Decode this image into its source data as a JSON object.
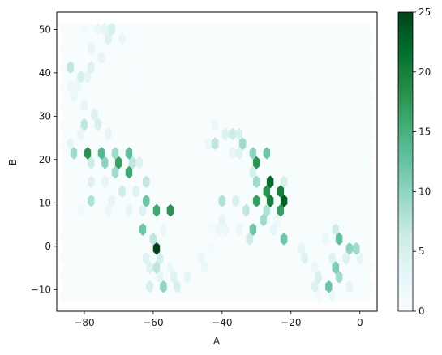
{
  "chart_data": {
    "type": "heatmap",
    "subtype": "hexbin",
    "title": "",
    "xlabel": "A",
    "ylabel": "B",
    "xlim": [
      -88,
      5
    ],
    "ylim": [
      -15,
      54
    ],
    "xticks": [
      -80,
      -60,
      -40,
      -20,
      0
    ],
    "yticks": [
      -10,
      0,
      10,
      20,
      30,
      40,
      50
    ],
    "xtick_labels": [
      "−80",
      "−60",
      "−40",
      "−20",
      "0"
    ],
    "ytick_labels": [
      "−10",
      "0",
      "10",
      "20",
      "30",
      "40",
      "50"
    ],
    "hex_grid": {
      "x_start": -86,
      "x_step": 2.0,
      "y_start": -11.5,
      "y_step": 2.2,
      "cols": 45,
      "rows": 29
    },
    "colorbar": {
      "min": 0,
      "max": 25,
      "ticks": [
        0,
        5,
        10,
        15,
        20,
        25
      ],
      "tick_labels": [
        "0",
        "5",
        "10",
        "15",
        "20",
        "25"
      ],
      "colormap": "BuGn",
      "stops": [
        "#f7fcfd",
        "#e5f5f9",
        "#ccece6",
        "#99d8c9",
        "#66c2a4",
        "#41ae76",
        "#238b45",
        "#006d2c",
        "#00441b"
      ]
    },
    "bins": [
      {
        "x": -60,
        "y": 0,
        "count": 25
      },
      {
        "x": -80,
        "y": 21.5,
        "count": 18
      },
      {
        "x": -76,
        "y": 21.5,
        "count": 14
      },
      {
        "x": -72,
        "y": 21.5,
        "count": 9
      },
      {
        "x": -68,
        "y": 21.5,
        "count": 13
      },
      {
        "x": -84,
        "y": 21.5,
        "count": 9
      },
      {
        "x": -70,
        "y": 19.5,
        "count": 17
      },
      {
        "x": -68,
        "y": 17.5,
        "count": 16
      },
      {
        "x": -66,
        "y": 19.5,
        "count": 7
      },
      {
        "x": -78,
        "y": 19.5,
        "count": 6
      },
      {
        "x": -74,
        "y": 19.5,
        "count": 10
      },
      {
        "x": -72,
        "y": 17.5,
        "count": 9
      },
      {
        "x": -64,
        "y": 19.5,
        "count": 4
      },
      {
        "x": -62,
        "y": 15.5,
        "count": 7
      },
      {
        "x": -78,
        "y": 15.5,
        "count": 4
      },
      {
        "x": -74,
        "y": 15.5,
        "count": 3
      },
      {
        "x": -70,
        "y": 13.5,
        "count": 6
      },
      {
        "x": -66,
        "y": 13.5,
        "count": 4
      },
      {
        "x": -72,
        "y": 11.5,
        "count": 3
      },
      {
        "x": -78,
        "y": 10,
        "count": 8
      },
      {
        "x": -62,
        "y": 10,
        "count": 12
      },
      {
        "x": -60,
        "y": 8,
        "count": 16
      },
      {
        "x": -56,
        "y": 8,
        "count": 18
      },
      {
        "x": -64,
        "y": 8,
        "count": 4
      },
      {
        "x": -68,
        "y": 8,
        "count": 3
      },
      {
        "x": -74,
        "y": 8,
        "count": 2
      },
      {
        "x": -82,
        "y": 8,
        "count": 1
      },
      {
        "x": -64,
        "y": 4,
        "count": 12
      },
      {
        "x": -58,
        "y": 4,
        "count": 2
      },
      {
        "x": -60,
        "y": 2,
        "count": 7
      },
      {
        "x": -58,
        "y": -2,
        "count": 5
      },
      {
        "x": -62,
        "y": -2,
        "count": 4
      },
      {
        "x": -60,
        "y": -4,
        "count": 7
      },
      {
        "x": -56,
        "y": -4,
        "count": 2
      },
      {
        "x": -62,
        "y": -6,
        "count": 4
      },
      {
        "x": -58,
        "y": -8,
        "count": 3
      },
      {
        "x": -54,
        "y": -8,
        "count": 4
      },
      {
        "x": -62,
        "y": -9.5,
        "count": 5
      },
      {
        "x": -58,
        "y": -9.5,
        "count": 10
      },
      {
        "x": -54,
        "y": -9.5,
        "count": 5
      },
      {
        "x": -50,
        "y": -7.5,
        "count": 3
      },
      {
        "x": -46,
        "y": -5.5,
        "count": 2
      },
      {
        "x": -46,
        "y": -3,
        "count": 2
      },
      {
        "x": -44,
        "y": -1.5,
        "count": 1
      },
      {
        "x": -42,
        "y": 3,
        "count": 2
      },
      {
        "x": -40,
        "y": 6,
        "count": 3
      },
      {
        "x": -40,
        "y": 10,
        "count": 8
      },
      {
        "x": -36,
        "y": 10,
        "count": 5
      },
      {
        "x": -34,
        "y": 8,
        "count": 7
      },
      {
        "x": -30,
        "y": 10,
        "count": 17
      },
      {
        "x": -26,
        "y": 10,
        "count": 20
      },
      {
        "x": -22,
        "y": 10,
        "count": 23
      },
      {
        "x": -28,
        "y": 12,
        "count": 18
      },
      {
        "x": -24,
        "y": 13,
        "count": 20
      },
      {
        "x": -26,
        "y": 15,
        "count": 22
      },
      {
        "x": -22,
        "y": 14,
        "count": 5
      },
      {
        "x": -30,
        "y": 15.5,
        "count": 9
      },
      {
        "x": -32,
        "y": 17.5,
        "count": 5
      },
      {
        "x": -28,
        "y": 8,
        "count": 8
      },
      {
        "x": -24,
        "y": 8,
        "count": 17
      },
      {
        "x": -28,
        "y": 6,
        "count": 9
      },
      {
        "x": -32,
        "y": 4,
        "count": 12
      },
      {
        "x": -32,
        "y": 2,
        "count": 6
      },
      {
        "x": -22,
        "y": 2,
        "count": 12
      },
      {
        "x": -26,
        "y": 4,
        "count": 3
      },
      {
        "x": -36,
        "y": 4,
        "count": 2
      },
      {
        "x": -40,
        "y": 4,
        "count": 2
      },
      {
        "x": -44,
        "y": 4,
        "count": 1
      },
      {
        "x": -30,
        "y": 19.5,
        "count": 18
      },
      {
        "x": -28,
        "y": 21.5,
        "count": 12
      },
      {
        "x": -32,
        "y": 21.5,
        "count": 10
      },
      {
        "x": -34,
        "y": 23.5,
        "count": 9
      },
      {
        "x": -36,
        "y": 21.5,
        "count": 4
      },
      {
        "x": -38,
        "y": 25.5,
        "count": 6
      },
      {
        "x": -36,
        "y": 25.5,
        "count": 5
      },
      {
        "x": -42,
        "y": 23.5,
        "count": 7
      },
      {
        "x": -40,
        "y": 25.5,
        "count": 4
      },
      {
        "x": -44,
        "y": 23.5,
        "count": 2
      },
      {
        "x": -42,
        "y": 27.5,
        "count": 2
      },
      {
        "x": -38,
        "y": 21.5,
        "count": 3
      },
      {
        "x": -24,
        "y": 6,
        "count": 2
      },
      {
        "x": -18,
        "y": -1.5,
        "count": 3
      },
      {
        "x": -16,
        "y": -3.5,
        "count": 4
      },
      {
        "x": -14,
        "y": -5.5,
        "count": 2
      },
      {
        "x": -12,
        "y": -7.5,
        "count": 5
      },
      {
        "x": -10,
        "y": -9.5,
        "count": 12
      },
      {
        "x": -14,
        "y": -9.5,
        "count": 4
      },
      {
        "x": -6,
        "y": -7.5,
        "count": 9
      },
      {
        "x": -8,
        "y": -5,
        "count": 11
      },
      {
        "x": -8,
        "y": -2.5,
        "count": 4
      },
      {
        "x": -4,
        "y": -2.5,
        "count": 4
      },
      {
        "x": -2,
        "y": -0.5,
        "count": 9
      },
      {
        "x": -6,
        "y": 2,
        "count": 13
      },
      {
        "x": -4,
        "y": 0,
        "count": 10
      },
      {
        "x": -8,
        "y": 4,
        "count": 6
      },
      {
        "x": -10,
        "y": 1,
        "count": 2
      },
      {
        "x": 0,
        "y": -2.5,
        "count": 3
      },
      {
        "x": -8,
        "y": -11.5,
        "count": 2
      },
      {
        "x": -4,
        "y": -10,
        "count": 3
      },
      {
        "x": -12,
        "y": -11.5,
        "count": 1
      },
      {
        "x": -84,
        "y": 24,
        "count": 3
      },
      {
        "x": -82,
        "y": 25.5,
        "count": 2
      },
      {
        "x": -80,
        "y": 28,
        "count": 7
      },
      {
        "x": -76,
        "y": 27.5,
        "count": 5
      },
      {
        "x": -74,
        "y": 25.5,
        "count": 3
      },
      {
        "x": -78,
        "y": 30,
        "count": 4
      },
      {
        "x": -80,
        "y": 32,
        "count": 3
      },
      {
        "x": -84,
        "y": 34,
        "count": 2
      },
      {
        "x": -82,
        "y": 36,
        "count": 2
      },
      {
        "x": -84,
        "y": 38,
        "count": 2
      },
      {
        "x": -80,
        "y": 40,
        "count": 3
      },
      {
        "x": -84,
        "y": 42,
        "count": 7
      },
      {
        "x": -82,
        "y": 40,
        "count": 5
      },
      {
        "x": -78,
        "y": 42,
        "count": 4
      },
      {
        "x": -76,
        "y": 44,
        "count": 3
      },
      {
        "x": -78,
        "y": 46,
        "count": 3
      },
      {
        "x": -74,
        "y": 48,
        "count": 4
      },
      {
        "x": -72,
        "y": 50,
        "count": 5
      },
      {
        "x": -74,
        "y": 52,
        "count": 3
      },
      {
        "x": -76,
        "y": 50,
        "count": 2
      },
      {
        "x": -80,
        "y": 50,
        "count": 1
      },
      {
        "x": -70,
        "y": 48,
        "count": 2
      }
    ]
  }
}
